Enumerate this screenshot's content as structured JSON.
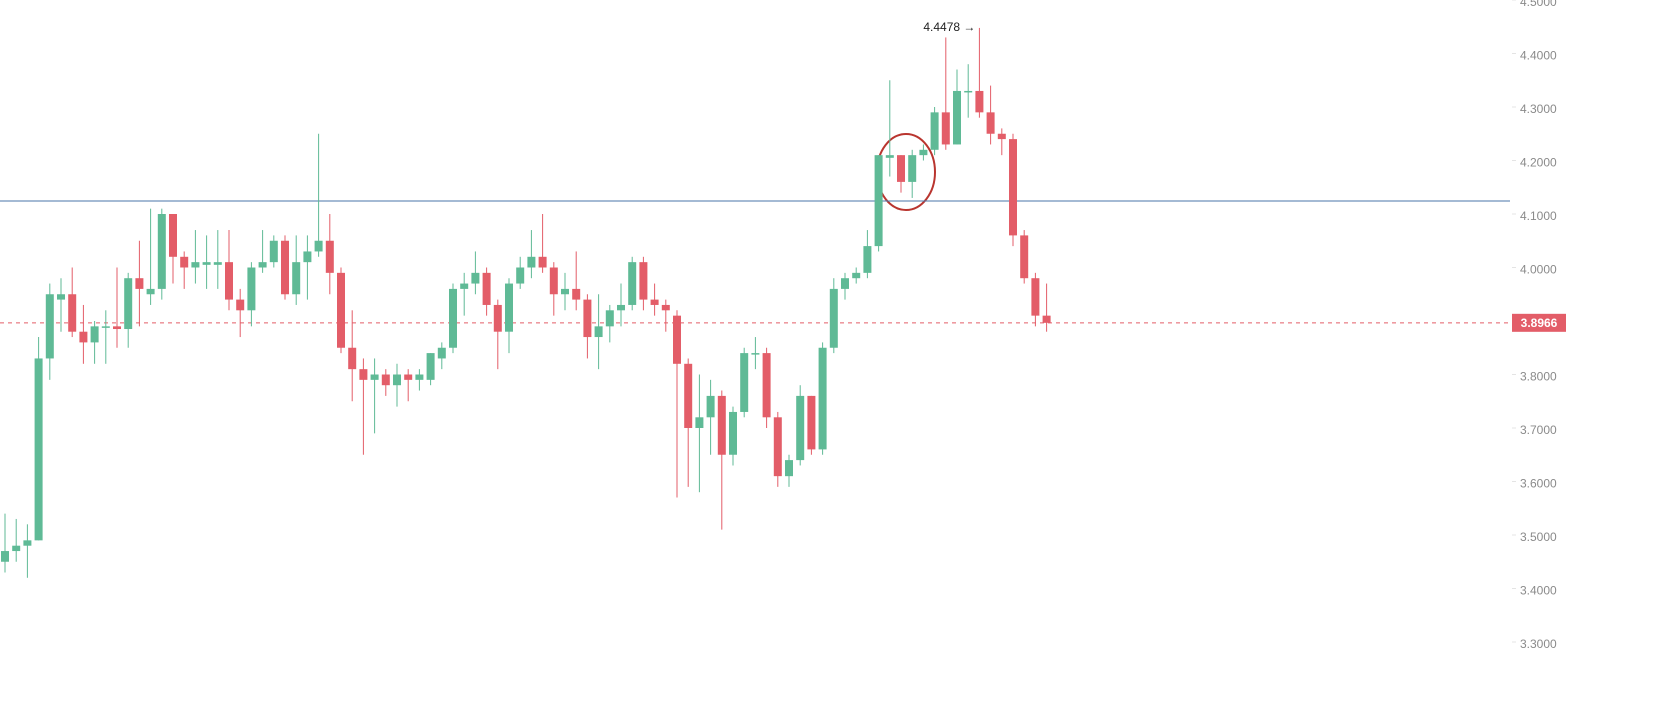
{
  "chart_data": {
    "type": "candlestick",
    "open": [
      3.45,
      3.47,
      3.48,
      3.49,
      3.83,
      3.94,
      3.95,
      3.88,
      3.86,
      3.89,
      3.89,
      3.885,
      3.98,
      3.95,
      3.96,
      4.1,
      4.02,
      4.0,
      4.005,
      4.005,
      4.01,
      3.94,
      3.92,
      4.0,
      4.01,
      4.05,
      3.95,
      4.01,
      4.03,
      4.05,
      3.99,
      3.85,
      3.81,
      3.79,
      3.8,
      3.78,
      3.8,
      3.79,
      3.79,
      3.83,
      3.85,
      3.96,
      3.97,
      3.99,
      3.93,
      3.88,
      3.97,
      4.0,
      4.02,
      4.0,
      3.95,
      3.96,
      3.94,
      3.87,
      3.89,
      3.92,
      3.93,
      4.01,
      3.94,
      3.93,
      3.91,
      3.82,
      3.7,
      3.72,
      3.76,
      3.65,
      3.73,
      3.84,
      3.84,
      3.72,
      3.61,
      3.64,
      3.76,
      3.66,
      3.85,
      3.96,
      3.98,
      3.99,
      4.04,
      4.205,
      4.21,
      4.16,
      4.21,
      4.22,
      4.29,
      4.23,
      4.33,
      4.33,
      4.29,
      4.25,
      4.24,
      4.06,
      3.98,
      3.91
    ],
    "high": [
      3.54,
      3.53,
      3.52,
      3.87,
      3.97,
      3.98,
      4.0,
      3.93,
      3.9,
      3.92,
      4.0,
      3.99,
      4.05,
      4.11,
      4.11,
      4.1,
      4.03,
      4.07,
      4.06,
      4.07,
      4.07,
      3.96,
      4.01,
      4.07,
      4.06,
      4.06,
      4.06,
      4.06,
      4.25,
      4.1,
      4.0,
      3.92,
      3.83,
      3.83,
      3.81,
      3.82,
      3.81,
      3.81,
      3.84,
      3.86,
      3.97,
      3.99,
      4.03,
      4.0,
      3.94,
      3.98,
      4.02,
      4.07,
      4.1,
      4.01,
      3.99,
      4.03,
      3.95,
      3.95,
      3.93,
      3.97,
      4.02,
      4.02,
      3.97,
      3.94,
      3.92,
      3.83,
      3.8,
      3.79,
      3.77,
      3.74,
      3.85,
      3.87,
      3.85,
      3.73,
      3.65,
      3.78,
      3.76,
      3.86,
      3.98,
      3.99,
      4.0,
      4.07,
      4.21,
      4.35,
      4.21,
      4.22,
      4.23,
      4.3,
      4.43,
      4.37,
      4.38,
      4.4478,
      4.34,
      4.26,
      4.25,
      4.07,
      3.99,
      3.97
    ],
    "low": [
      3.43,
      3.45,
      3.42,
      3.49,
      3.79,
      3.88,
      3.87,
      3.82,
      3.82,
      3.82,
      3.85,
      3.85,
      3.89,
      3.93,
      3.94,
      3.97,
      3.96,
      3.97,
      3.96,
      3.96,
      3.92,
      3.87,
      3.89,
      3.99,
      4.0,
      3.94,
      3.93,
      3.94,
      4.02,
      3.95,
      3.84,
      3.75,
      3.65,
      3.69,
      3.76,
      3.74,
      3.75,
      3.77,
      3.78,
      3.81,
      3.84,
      3.91,
      3.95,
      3.91,
      3.81,
      3.84,
      3.96,
      3.98,
      3.99,
      3.91,
      3.92,
      3.92,
      3.83,
      3.81,
      3.86,
      3.89,
      3.92,
      3.92,
      3.91,
      3.88,
      3.57,
      3.59,
      3.58,
      3.65,
      3.51,
      3.63,
      3.72,
      3.81,
      3.7,
      3.59,
      3.59,
      3.63,
      3.65,
      3.65,
      3.84,
      3.94,
      3.97,
      3.98,
      4.03,
      4.17,
      4.14,
      4.13,
      4.2,
      4.21,
      4.22,
      4.23,
      4.28,
      4.28,
      4.23,
      4.21,
      4.04,
      3.97,
      3.89,
      3.88
    ],
    "close": [
      3.47,
      3.48,
      3.49,
      3.83,
      3.95,
      3.95,
      3.88,
      3.86,
      3.89,
      3.89,
      3.885,
      3.98,
      3.96,
      3.96,
      4.1,
      4.02,
      4.0,
      4.01,
      4.01,
      4.01,
      3.94,
      3.92,
      4.0,
      4.01,
      4.05,
      3.95,
      4.01,
      4.03,
      4.05,
      3.99,
      3.85,
      3.81,
      3.79,
      3.8,
      3.78,
      3.8,
      3.79,
      3.8,
      3.84,
      3.85,
      3.96,
      3.97,
      3.99,
      3.93,
      3.88,
      3.97,
      4.0,
      4.02,
      4.0,
      3.95,
      3.96,
      3.94,
      3.87,
      3.89,
      3.92,
      3.93,
      4.01,
      3.94,
      3.93,
      3.92,
      3.82,
      3.7,
      3.72,
      3.76,
      3.65,
      3.73,
      3.84,
      3.84,
      3.72,
      3.61,
      3.64,
      3.76,
      3.66,
      3.85,
      3.96,
      3.98,
      3.99,
      4.04,
      4.21,
      4.21,
      4.16,
      4.21,
      4.22,
      4.29,
      4.23,
      4.33,
      4.33,
      4.29,
      4.25,
      4.24,
      4.06,
      3.98,
      3.91,
      3.8966
    ],
    "up_color": "#5fba96",
    "down_color": "#e35d68",
    "ylim": [
      3.2,
      4.5
    ],
    "yticks": [
      {
        "value": 3.3,
        "label": "3.3000"
      },
      {
        "value": 3.4,
        "label": "3.4000"
      },
      {
        "value": 3.5,
        "label": "3.5000"
      },
      {
        "value": 3.6,
        "label": "3.6000"
      },
      {
        "value": 3.7,
        "label": "3.7000"
      },
      {
        "value": 3.8,
        "label": "3.8000"
      },
      {
        "value": 3.9,
        "label": "3.9000"
      },
      {
        "value": 4.0,
        "label": "4.0000"
      },
      {
        "value": 4.1,
        "label": "4.1000"
      },
      {
        "value": 4.2,
        "label": "4.2000"
      },
      {
        "value": 4.3,
        "label": "4.3000"
      },
      {
        "value": 4.4,
        "label": "4.4000"
      },
      {
        "value": 4.5,
        "label": "4.5000"
      }
    ],
    "hline": {
      "value": 4.1243,
      "color": "#4a76a8"
    },
    "last_price": 3.8966,
    "annotation": "4.4478 →"
  }
}
